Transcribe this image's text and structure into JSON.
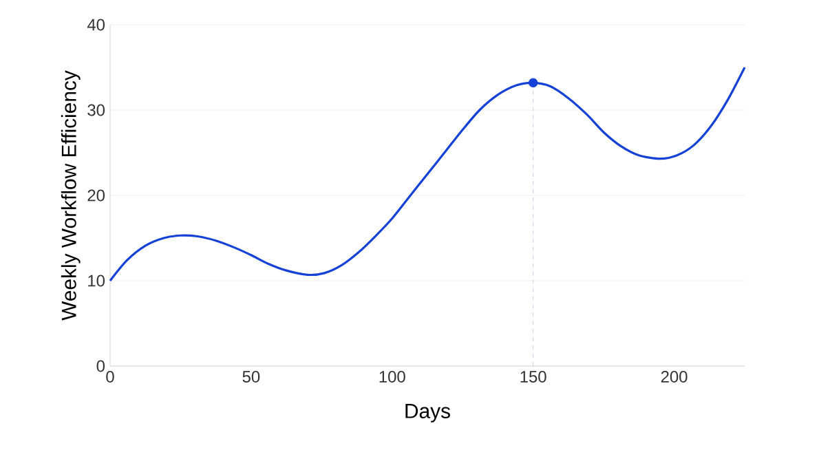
{
  "chart_data": {
    "type": "line",
    "xlabel": "Days",
    "ylabel": "Weekly Workflow Efficiency",
    "xlim": [
      0,
      225
    ],
    "ylim": [
      0,
      40
    ],
    "xticks": [
      0,
      50,
      100,
      150,
      200
    ],
    "yticks": [
      0,
      10,
      20,
      30,
      40
    ],
    "grid": "y",
    "series": [
      {
        "color": "#1541d6",
        "x": [
          0,
          6,
          12.5,
          19,
          25,
          31,
          37.5,
          44,
          50,
          56,
          62.5,
          70,
          76,
          82,
          88,
          94,
          100,
          106,
          112.5,
          119,
          125,
          131,
          137.5,
          144,
          150,
          156,
          162.5,
          169,
          175,
          181,
          187.5,
          195,
          201,
          207,
          213,
          219,
          225
        ],
        "values": [
          10,
          12.4,
          14.1,
          15.0,
          15.3,
          15.2,
          14.7,
          13.9,
          13.0,
          12.0,
          11.2,
          10.7,
          10.9,
          11.8,
          13.3,
          15.2,
          17.3,
          19.8,
          22.5,
          25.2,
          27.7,
          30.0,
          31.8,
          32.9,
          33.2,
          32.8,
          31.4,
          29.5,
          27.4,
          25.8,
          24.7,
          24.3,
          24.7,
          25.9,
          28.1,
          31.2,
          35
        ]
      },
      {
        "type": "scatter",
        "color": "#1541d6",
        "x": [
          150
        ],
        "values": [
          33.2
        ],
        "marker": "circle"
      }
    ],
    "ref_lines": [
      {
        "axis": "x",
        "value": 150,
        "color": "#b8c4e0",
        "line_style": "dashed"
      }
    ]
  }
}
